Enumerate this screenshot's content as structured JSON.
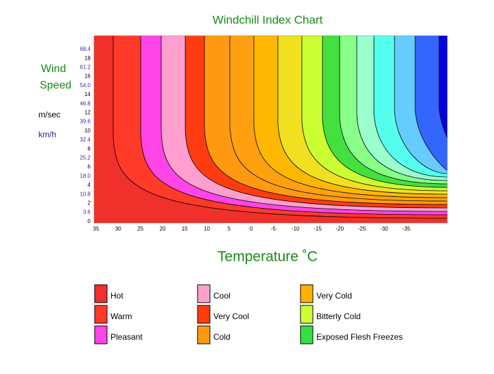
{
  "title": "Windchill Index Chart",
  "y_axis": {
    "label_lines": [
      "Wind",
      "Speed"
    ],
    "unit_ms": "m/sec",
    "unit_kmh": "km/h",
    "ticks": [
      {
        "label": "68.4",
        "unit": "kmh"
      },
      {
        "label": "18",
        "unit": "ms"
      },
      {
        "label": "61.2",
        "unit": "kmh"
      },
      {
        "label": "16",
        "unit": "ms"
      },
      {
        "label": "54.0",
        "unit": "kmh"
      },
      {
        "label": "14",
        "unit": "ms"
      },
      {
        "label": "46.8",
        "unit": "kmh"
      },
      {
        "label": "12",
        "unit": "ms"
      },
      {
        "label": "39.6",
        "unit": "kmh"
      },
      {
        "label": "10",
        "unit": "ms"
      },
      {
        "label": "32.4",
        "unit": "kmh"
      },
      {
        "label": "8",
        "unit": "ms"
      },
      {
        "label": "25.2",
        "unit": "kmh"
      },
      {
        "label": "6",
        "unit": "ms"
      },
      {
        "label": "18.0",
        "unit": "kmh"
      },
      {
        "label": "4",
        "unit": "ms"
      },
      {
        "label": "10.8",
        "unit": "kmh"
      },
      {
        "label": "2",
        "unit": "ms"
      },
      {
        "label": "3.6",
        "unit": "kmh"
      },
      {
        "label": "0",
        "unit": "ms"
      }
    ]
  },
  "x_axis": {
    "label": "Temperature ˚C",
    "ticks": [
      "35",
      "30",
      "25",
      "20",
      "15",
      "10",
      "5",
      "0",
      "-5",
      "-10",
      "-15",
      "-20",
      "-25",
      "-30",
      "-35"
    ]
  },
  "legend": [
    {
      "name": "Hot",
      "color": "#f0302a"
    },
    {
      "name": "Warm",
      "color": "#ff3a28"
    },
    {
      "name": "Pleasant",
      "color": "#ff44e8"
    },
    {
      "name": "Cool",
      "color": "#ff9fd0"
    },
    {
      "name": "Very Cool",
      "color": "#ff3c10"
    },
    {
      "name": "Cold",
      "color": "#ff9a10"
    },
    {
      "name": "Very Cold",
      "color": "#ffb000"
    },
    {
      "name": "Bitterly Cold",
      "color": "#ccff33"
    },
    {
      "name": "Exposed Flesh Freezes",
      "color": "#33e040"
    }
  ]
}
